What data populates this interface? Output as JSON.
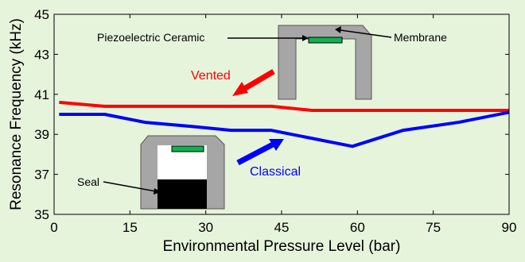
{
  "chart_data": {
    "type": "line",
    "xlabel": "Environmental Pressure Level (bar)",
    "ylabel": "Resonance Frequency (kHz)",
    "xlim": [
      0,
      90
    ],
    "ylim": [
      35,
      45
    ],
    "xticks": [
      0,
      15,
      30,
      45,
      60,
      75,
      90
    ],
    "yticks": [
      35,
      37,
      39,
      41,
      43,
      45
    ],
    "grid": false,
    "series": [
      {
        "name": "Vented",
        "color": "#ff0000",
        "x": [
          1,
          10,
          20,
          30,
          43,
          51,
          60,
          70,
          80,
          90
        ],
        "y": [
          40.6,
          40.4,
          40.4,
          40.4,
          40.4,
          40.2,
          40.2,
          40.2,
          40.2,
          40.2
        ]
      },
      {
        "name": "Classical",
        "color": "#0000ff",
        "x": [
          1,
          10,
          18,
          27,
          35,
          43,
          51,
          59,
          69,
          80,
          90
        ],
        "y": [
          40.0,
          40.0,
          39.6,
          39.4,
          39.2,
          39.2,
          38.8,
          38.4,
          39.2,
          39.6,
          40.1
        ]
      }
    ],
    "annotations": {
      "piezo": "Piezoelectric Ceramic",
      "membrane": "Membrane",
      "seal": "Seal"
    }
  },
  "colors": {
    "background": "#e6f4dc",
    "housing": "#a6a6a6",
    "piezo": "#12b050",
    "seal": "#000000"
  }
}
